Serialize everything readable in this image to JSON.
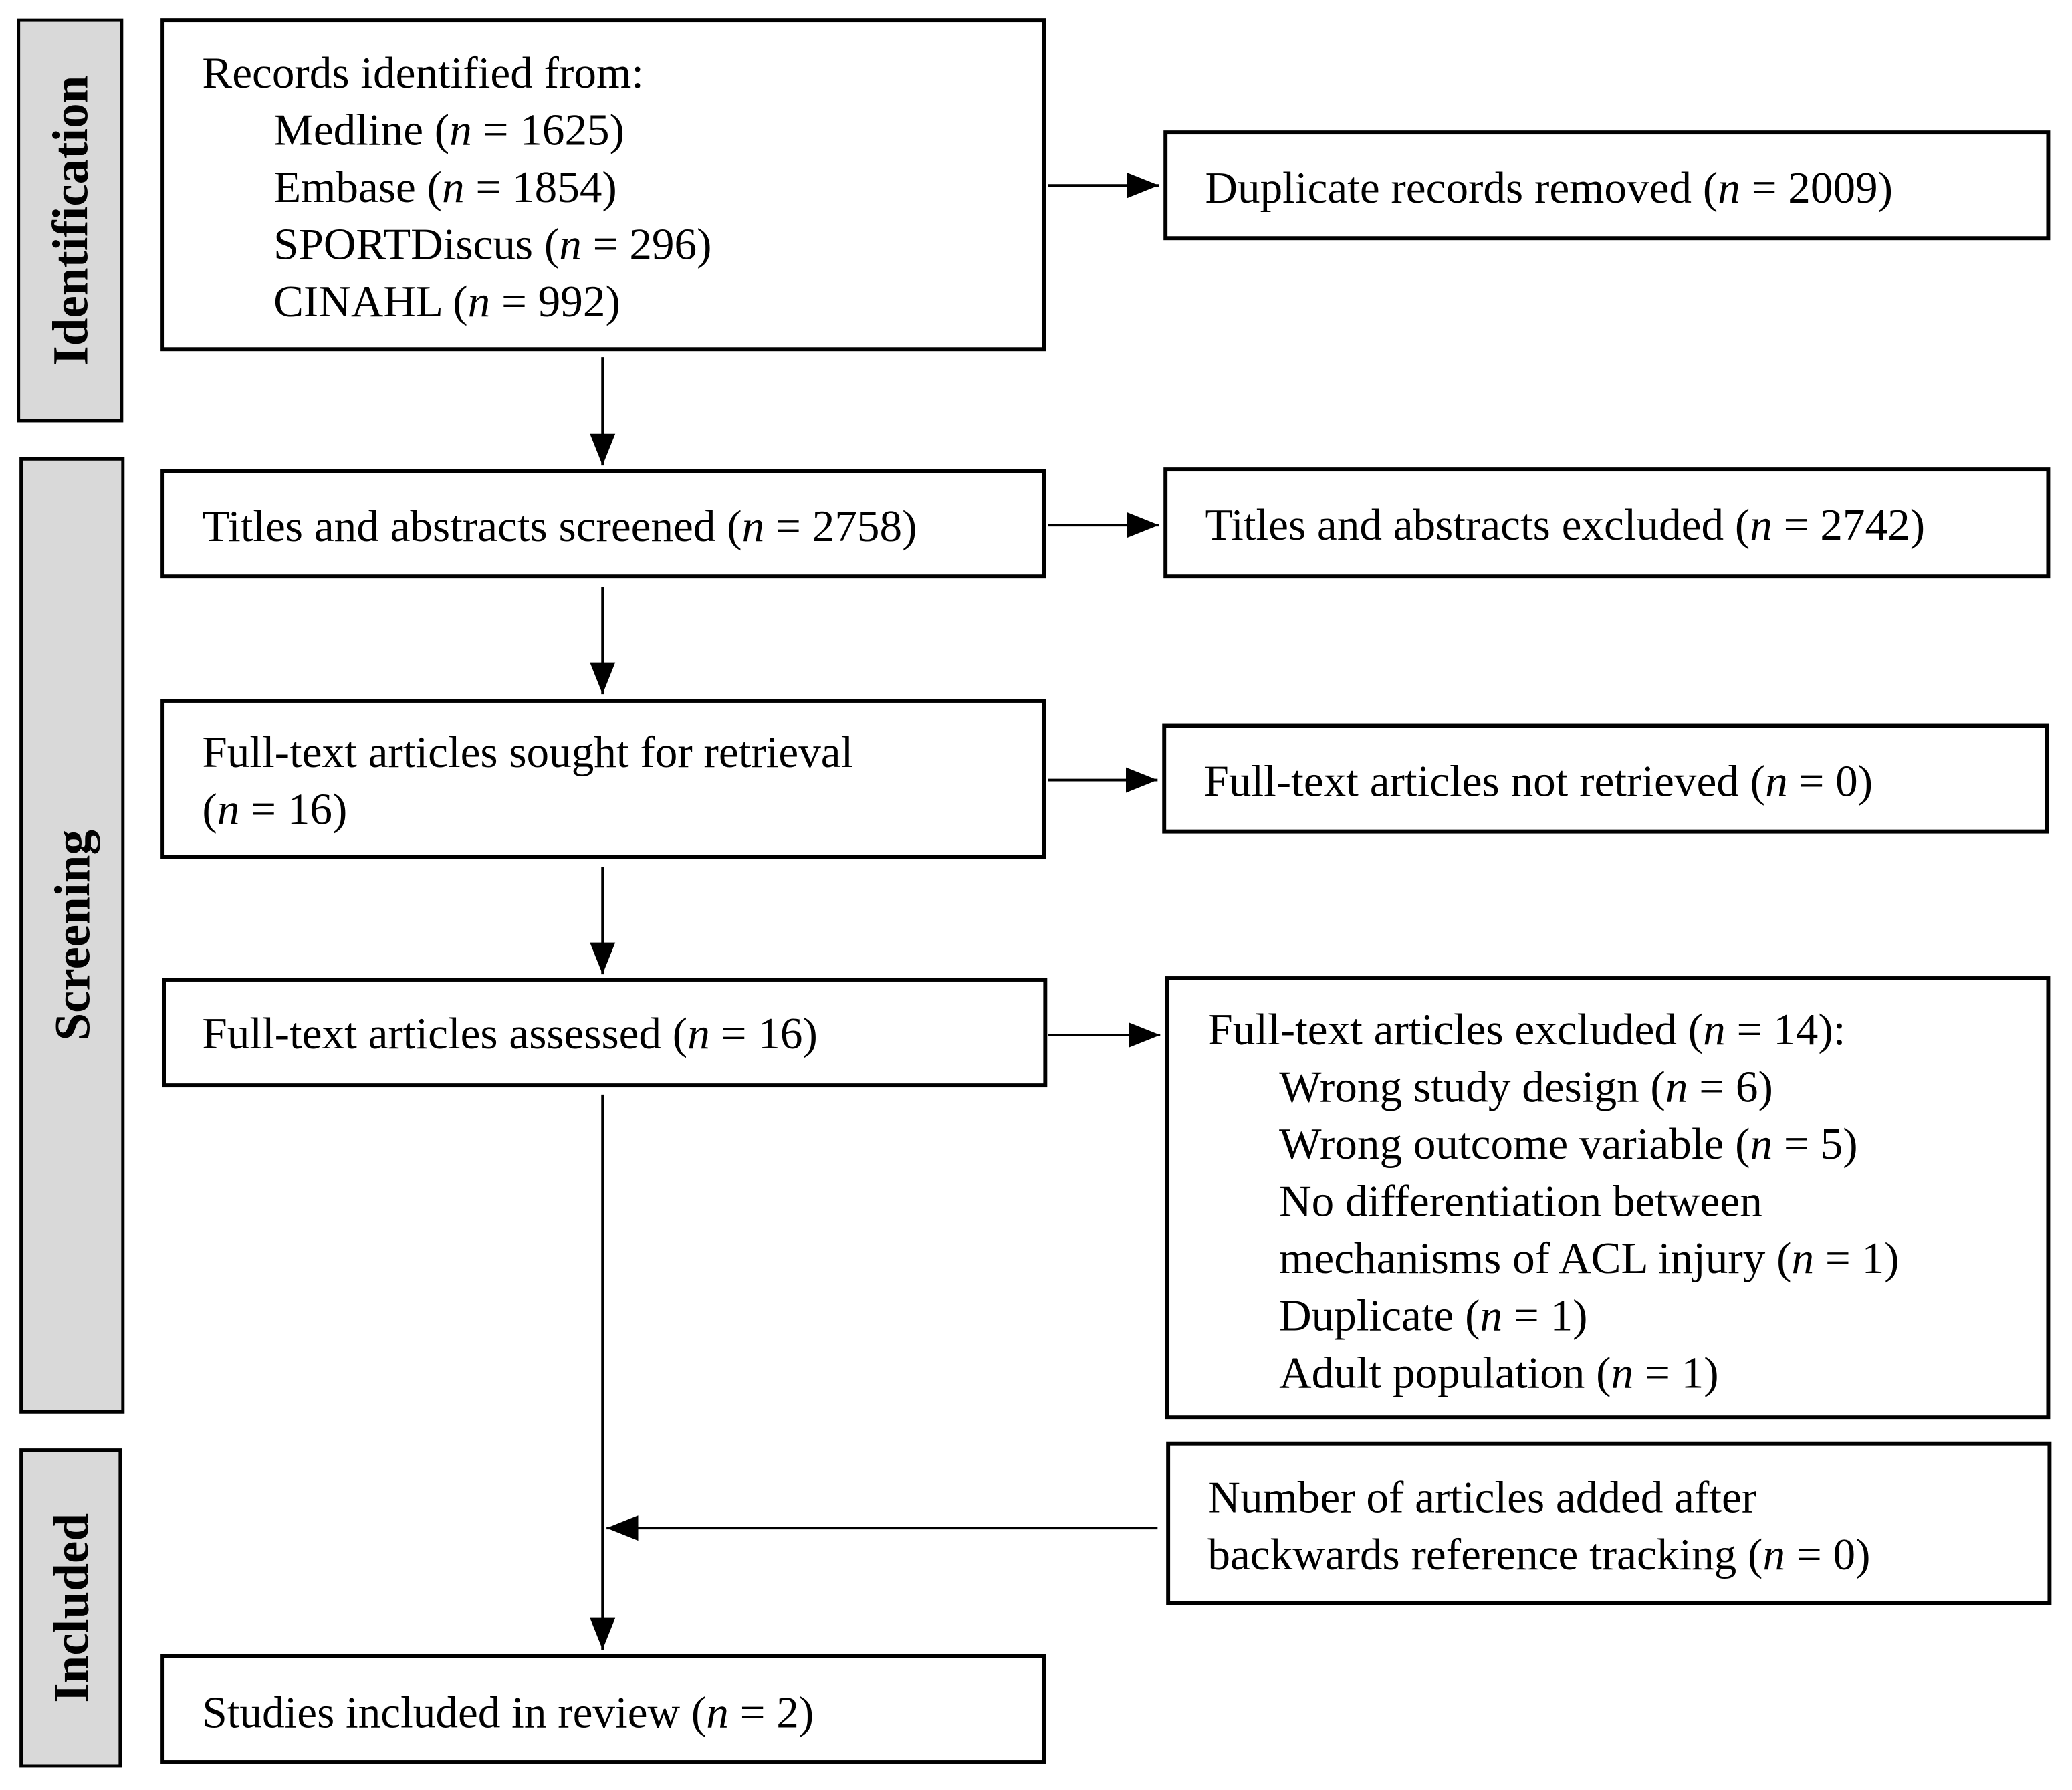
{
  "stages": [
    {
      "label": "Identification"
    },
    {
      "label": "Screening"
    },
    {
      "label": "Included"
    }
  ],
  "boxes": [
    {
      "lines": [
        "Records identified from:",
        "Medline (n = 1625)",
        "Embase (n = 1854)",
        "SPORTDiscus (n = 296)",
        "CINAHL (n = 992)"
      ]
    },
    {
      "lines": [
        "Duplicate records removed (n = 2009)"
      ]
    },
    {
      "lines": [
        "Titles and abstracts screened (n = 2758)"
      ]
    },
    {
      "lines": [
        "Titles and abstracts excluded (n = 2742)"
      ]
    },
    {
      "lines": [
        "Full-text articles sought for retrieval",
        "(n = 16)"
      ]
    },
    {
      "lines": [
        "Full-text articles not retrieved (n = 0)"
      ]
    },
    {
      "lines": [
        "Full-text articles assessed (n = 16)"
      ]
    },
    {
      "lines": [
        "Full-text articles excluded (n = 14):",
        "Wrong study design (n = 6)",
        "Wrong outcome variable (n = 5)",
        "No differentiation between",
        "mechanisms of ACL injury (n = 1)",
        "Duplicate (n = 1)",
        "Adult population (n = 1)"
      ]
    },
    {
      "lines": [
        "Number of articles added after",
        "backwards reference tracking (n = 0)"
      ]
    },
    {
      "lines": [
        "Studies included in review (n = 2)"
      ]
    }
  ]
}
